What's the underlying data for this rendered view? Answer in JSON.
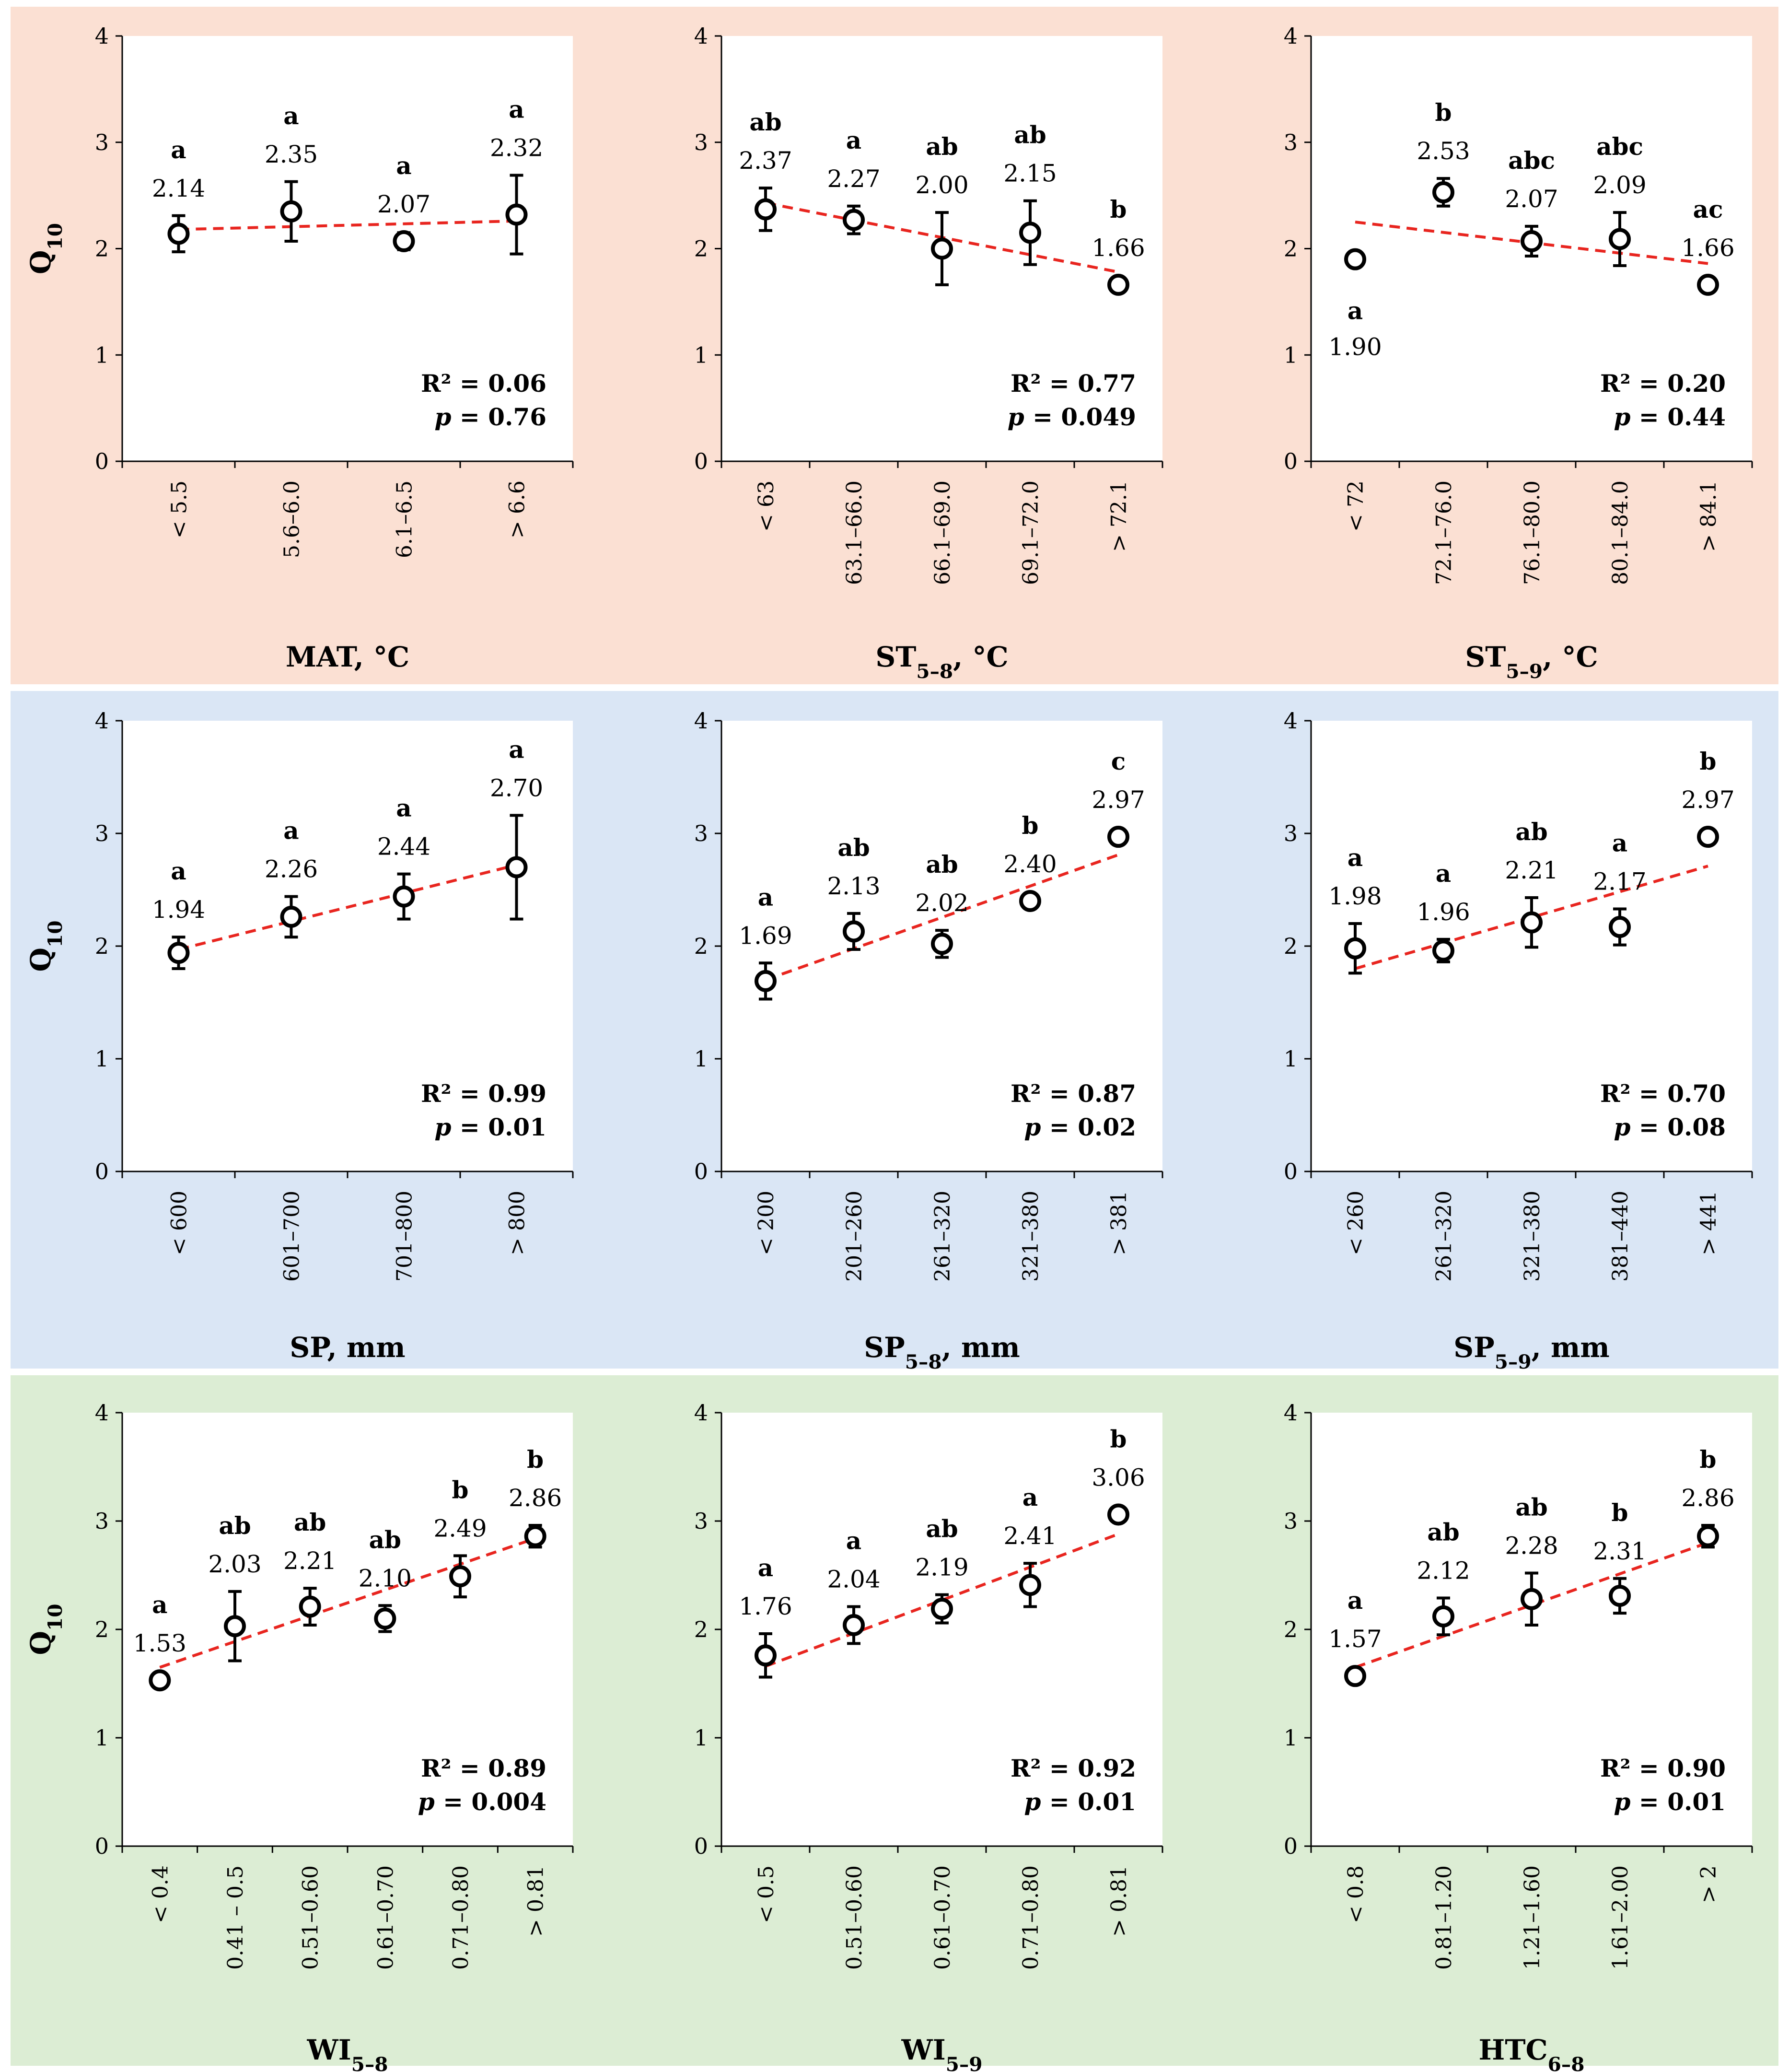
{
  "colors": {
    "row_backgrounds": [
      "#fbe0d3",
      "#dae6f5",
      "#dcedd4"
    ],
    "trendline": "#e8251f",
    "point_fill": "#ffffff",
    "point_stroke": "#000000"
  },
  "chart_data": [
    {
      "type": "scatter",
      "ylabel": "Q10",
      "xlabel": "MAT, °C",
      "ylim": [
        0,
        4
      ],
      "yticks": [
        "0",
        "1",
        "2",
        "3",
        "4"
      ],
      "categories": [
        "< 5.5",
        "5.6–6.0",
        "6.1–6.5",
        "> 6.6"
      ],
      "values": [
        2.14,
        2.35,
        2.07,
        2.32
      ],
      "value_labels": [
        "2.14",
        "2.35",
        "2.07",
        "2.32"
      ],
      "error_bars": [
        0.17,
        0.28,
        0.08,
        0.37
      ],
      "letters": [
        "a",
        "a",
        "a",
        "a"
      ],
      "letters_below": [
        false,
        false,
        false,
        false
      ],
      "trend": [
        2.18,
        2.26
      ],
      "r2": "R² = 0.06",
      "p": "p = 0.76"
    },
    {
      "type": "scatter",
      "ylabel": "",
      "xlabel": "ST5–8, °C",
      "ylim": [
        0,
        4
      ],
      "yticks": [
        "0",
        "1",
        "2",
        "3",
        "4"
      ],
      "categories": [
        "< 63",
        "63.1–66.0",
        "66.1–69.0",
        "69.1–72.0",
        "> 72.1"
      ],
      "values": [
        2.37,
        2.27,
        2.0,
        2.15,
        1.66
      ],
      "value_labels": [
        "2.37",
        "2.27",
        "2.00",
        "2.15",
        "1.66"
      ],
      "error_bars": [
        0.2,
        0.13,
        0.34,
        0.3,
        0.05
      ],
      "letters": [
        "ab",
        "a",
        "ab",
        "ab",
        "b"
      ],
      "letters_below": [
        false,
        false,
        false,
        false,
        false
      ],
      "trend": [
        2.43,
        1.78
      ],
      "r2": "R² = 0.77",
      "p": "p = 0.049"
    },
    {
      "type": "scatter",
      "ylabel": "",
      "xlabel": "ST5–9, °C",
      "ylim": [
        0,
        4
      ],
      "yticks": [
        "0",
        "1",
        "2",
        "3",
        "4"
      ],
      "categories": [
        "< 72",
        "72.1–76.0",
        "76.1–80.0",
        "80.1–84.0",
        "> 84.1"
      ],
      "values": [
        1.9,
        2.53,
        2.07,
        2.09,
        1.66
      ],
      "value_labels": [
        "1.90",
        "2.53",
        "2.07",
        "2.09",
        "1.66"
      ],
      "error_bars": [
        0.04,
        0.13,
        0.14,
        0.25,
        0.05
      ],
      "letters": [
        "a",
        "b",
        "abc",
        "abc",
        "ac"
      ],
      "letters_below": [
        true,
        false,
        false,
        false,
        false
      ],
      "trend": [
        2.25,
        1.86
      ],
      "r2": "R² = 0.20",
      "p": "p = 0.44"
    },
    {
      "type": "scatter",
      "ylabel": "Q10",
      "xlabel": "SP, mm",
      "ylim": [
        0,
        4
      ],
      "yticks": [
        "0",
        "1",
        "2",
        "3",
        "4"
      ],
      "categories": [
        "< 600",
        "601–700",
        "701–800",
        "> 800"
      ],
      "values": [
        1.94,
        2.26,
        2.44,
        2.7
      ],
      "value_labels": [
        "1.94",
        "2.26",
        "2.44",
        "2.70"
      ],
      "error_bars": [
        0.14,
        0.18,
        0.2,
        0.46
      ],
      "letters": [
        "a",
        "a",
        "a",
        "a"
      ],
      "letters_below": [
        false,
        false,
        false,
        false
      ],
      "trend": [
        1.97,
        2.72
      ],
      "r2": "R² = 0.99",
      "p": "p = 0.01"
    },
    {
      "type": "scatter",
      "ylabel": "",
      "xlabel": "SP5–8, mm",
      "ylim": [
        0,
        4
      ],
      "yticks": [
        "0",
        "1",
        "2",
        "3",
        "4"
      ],
      "categories": [
        "< 200",
        "201–260",
        "261–320",
        "321–380",
        "> 381"
      ],
      "values": [
        1.69,
        2.13,
        2.02,
        2.4,
        2.97
      ],
      "value_labels": [
        "1.69",
        "2.13",
        "2.02",
        "2.40",
        "2.97"
      ],
      "error_bars": [
        0.16,
        0.16,
        0.12,
        0.05,
        0.05
      ],
      "letters": [
        "a",
        "ab",
        "ab",
        "b",
        "c"
      ],
      "letters_below": [
        false,
        false,
        false,
        false,
        false
      ],
      "trend": [
        1.7,
        2.81
      ],
      "r2": "R² = 0.87",
      "p": "p = 0.02"
    },
    {
      "type": "scatter",
      "ylabel": "",
      "xlabel": "SP5–9, mm",
      "ylim": [
        0,
        4
      ],
      "yticks": [
        "0",
        "1",
        "2",
        "3",
        "4"
      ],
      "categories": [
        "< 260",
        "261–320",
        "321–380",
        "381–440",
        "> 441"
      ],
      "values": [
        1.98,
        1.96,
        2.21,
        2.17,
        2.97
      ],
      "value_labels": [
        "1.98",
        "1.96",
        "2.21",
        "2.17",
        "2.97"
      ],
      "error_bars": [
        0.22,
        0.1,
        0.22,
        0.16,
        0.05
      ],
      "letters": [
        "a",
        "a",
        "ab",
        "a",
        "b"
      ],
      "letters_below": [
        false,
        false,
        false,
        false,
        false
      ],
      "trend": [
        1.8,
        2.71
      ],
      "r2": "R² = 0.70",
      "p": "p = 0.08"
    },
    {
      "type": "scatter",
      "ylabel": "Q10",
      "xlabel": "WI5–8",
      "ylim": [
        0,
        4
      ],
      "yticks": [
        "0",
        "1",
        "2",
        "3",
        "4"
      ],
      "categories": [
        "< 0.4",
        "0.41 – 0.5",
        "0.51–0.60",
        "0.61–0.70",
        "0.71–0.80",
        "> 0.81"
      ],
      "values": [
        1.53,
        2.03,
        2.21,
        2.1,
        2.49,
        2.86
      ],
      "value_labels": [
        "1.53",
        "2.03",
        "2.21",
        "2.10",
        "2.49",
        "2.86"
      ],
      "error_bars": [
        0.04,
        0.32,
        0.17,
        0.12,
        0.19,
        0.1
      ],
      "letters": [
        "a",
        "ab",
        "ab",
        "ab",
        "b",
        "b"
      ],
      "letters_below": [
        false,
        false,
        false,
        false,
        false,
        false
      ],
      "trend": [
        1.65,
        2.84
      ],
      "r2": "R² = 0.89",
      "p": "p = 0.004"
    },
    {
      "type": "scatter",
      "ylabel": "",
      "xlabel": "WI5–9",
      "ylim": [
        0,
        4
      ],
      "yticks": [
        "0",
        "1",
        "2",
        "3",
        "4"
      ],
      "categories": [
        "< 0.5",
        "0.51–0.60",
        "0.61–0.70",
        "0.71–0.80",
        "> 0.81"
      ],
      "values": [
        1.76,
        2.04,
        2.19,
        2.41,
        3.06
      ],
      "value_labels": [
        "1.76",
        "2.04",
        "2.19",
        "2.41",
        "3.06"
      ],
      "error_bars": [
        0.2,
        0.17,
        0.13,
        0.2,
        0.05
      ],
      "letters": [
        "a",
        "a",
        "ab",
        "a",
        "b"
      ],
      "letters_below": [
        false,
        false,
        false,
        false,
        false
      ],
      "trend": [
        1.66,
        2.88
      ],
      "r2": "R² = 0.92",
      "p": "p = 0.01"
    },
    {
      "type": "scatter",
      "ylabel": "",
      "xlabel": "HTC6–8",
      "ylim": [
        0,
        4
      ],
      "yticks": [
        "0",
        "1",
        "2",
        "3",
        "4"
      ],
      "categories": [
        "< 0.8",
        "0.81–1.20",
        "1.21–1.60",
        "1.61–2.00",
        "> 2"
      ],
      "values": [
        1.57,
        2.12,
        2.28,
        2.31,
        2.86
      ],
      "value_labels": [
        "1.57",
        "2.12",
        "2.28",
        "2.31",
        "2.86"
      ],
      "error_bars": [
        0.04,
        0.17,
        0.24,
        0.16,
        0.1
      ],
      "letters": [
        "a",
        "ab",
        "ab",
        "b",
        "b"
      ],
      "letters_below": [
        false,
        false,
        false,
        false,
        false
      ],
      "trend": [
        1.65,
        2.8
      ],
      "r2": "R² = 0.90",
      "p": "p = 0.01"
    }
  ]
}
